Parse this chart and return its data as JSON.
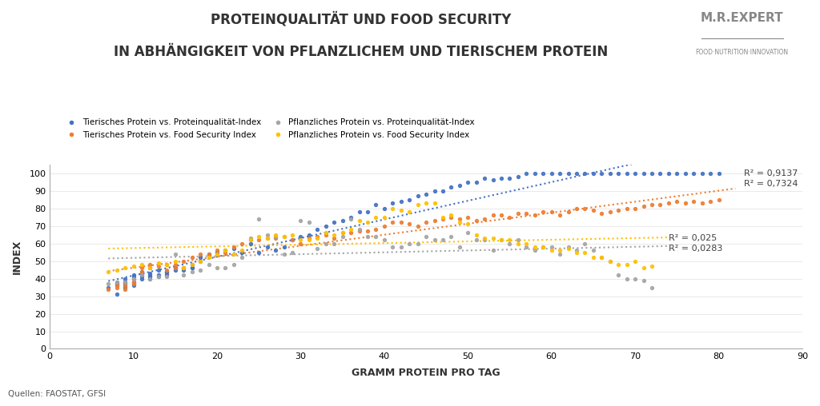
{
  "title_line1": "PROTEINQUALITÄT UND FOOD SECURITY",
  "title_line2": "IN ABHÄNGIGKEIT VON PFLANZLICHEM UND TIERISCHEM PROTEIN",
  "xlabel": "GRAMM PROTEIN PRO TAG",
  "ylabel": "INDEX",
  "source": "Quellen: FAOSTAT, GFSI",
  "xlim": [
    0,
    90
  ],
  "ylim": [
    0,
    105
  ],
  "xticks": [
    0,
    10,
    20,
    30,
    40,
    50,
    60,
    70,
    80,
    90
  ],
  "yticks": [
    0,
    10,
    20,
    30,
    40,
    50,
    60,
    70,
    80,
    90,
    100
  ],
  "color_tier_prot": "#4472C4",
  "color_tier_food": "#ED7D31",
  "color_pflanz_prot": "#A5A5A5",
  "color_pflanz_food": "#FFC000",
  "r2_tier_prot": "R² = 0,9137",
  "r2_tier_food": "R² = 0,7324",
  "r2_pflanz_prot": "R² = 0,025",
  "r2_pflanz_food": "R² = 0,0283",
  "legend_labels": [
    "Tierisches Protein vs. Proteinqualität-Index",
    "Tierisches Protein vs. Food Security Index",
    "Pflanzliches Protein vs. Proteinqualität-Index",
    "Pflanzliches Protein vs. Food Security Index"
  ],
  "tier_prot_x": [
    7,
    8,
    8,
    8,
    8,
    9,
    9,
    9,
    9,
    9,
    9,
    10,
    10,
    10,
    10,
    10,
    10,
    11,
    11,
    11,
    11,
    11,
    12,
    12,
    12,
    12,
    12,
    12,
    13,
    13,
    13,
    14,
    14,
    14,
    14,
    15,
    15,
    15,
    16,
    16,
    17,
    17,
    17,
    18,
    18,
    19,
    20,
    21,
    22,
    23,
    24,
    25,
    26,
    27,
    28,
    29,
    30,
    31,
    32,
    33,
    34,
    35,
    36,
    37,
    38,
    39,
    40,
    41,
    42,
    43,
    44,
    45,
    46,
    47,
    48,
    49,
    50,
    51,
    52,
    53,
    54,
    55,
    56,
    57,
    58,
    59,
    60,
    61,
    62,
    63,
    64,
    65,
    66,
    67,
    68,
    69,
    70,
    71,
    72,
    73,
    74,
    75,
    76,
    77,
    78,
    79,
    80
  ],
  "tier_prot_y": [
    35,
    36,
    37,
    38,
    31,
    35,
    38,
    40,
    38,
    37,
    36,
    36,
    40,
    42,
    38,
    41,
    37,
    44,
    43,
    41,
    42,
    40,
    41,
    46,
    43,
    42,
    41,
    40,
    45,
    42,
    41,
    44,
    43,
    44,
    42,
    46,
    45,
    46,
    46,
    45,
    46,
    48,
    46,
    50,
    52,
    54,
    55,
    56,
    57,
    55,
    60,
    55,
    58,
    56,
    58,
    62,
    64,
    65,
    68,
    70,
    72,
    73,
    75,
    78,
    78,
    82,
    80,
    83,
    84,
    85,
    87,
    88,
    90,
    90,
    92,
    93,
    95,
    95,
    97,
    96,
    97,
    97,
    98,
    100,
    100,
    100,
    100,
    100,
    100,
    100,
    100,
    100,
    100,
    100,
    100,
    100,
    100,
    100,
    100,
    100,
    100,
    100,
    100,
    100,
    100,
    100,
    100
  ],
  "tier_food_x": [
    7,
    8,
    8,
    9,
    9,
    10,
    10,
    10,
    11,
    11,
    12,
    12,
    13,
    14,
    14,
    15,
    15,
    16,
    16,
    17,
    18,
    19,
    20,
    21,
    22,
    23,
    24,
    25,
    26,
    27,
    28,
    29,
    30,
    31,
    32,
    33,
    34,
    35,
    36,
    37,
    38,
    39,
    40,
    41,
    42,
    43,
    44,
    45,
    46,
    47,
    48,
    49,
    50,
    51,
    52,
    53,
    54,
    55,
    56,
    57,
    58,
    59,
    60,
    61,
    62,
    63,
    64,
    65,
    66,
    67,
    68,
    69,
    70,
    71,
    72,
    73,
    74,
    75,
    76,
    77,
    78,
    79,
    80
  ],
  "tier_food_y": [
    34,
    35,
    36,
    34,
    36,
    37,
    38,
    40,
    44,
    46,
    48,
    46,
    47,
    45,
    48,
    48,
    46,
    46,
    50,
    52,
    54,
    54,
    56,
    55,
    58,
    60,
    62,
    62,
    63,
    63,
    64,
    62,
    60,
    63,
    64,
    65,
    63,
    66,
    66,
    67,
    67,
    68,
    70,
    72,
    72,
    71,
    70,
    72,
    73,
    74,
    75,
    74,
    75,
    73,
    74,
    76,
    76,
    75,
    77,
    77,
    76,
    78,
    78,
    76,
    78,
    80,
    80,
    79,
    77,
    78,
    79,
    80,
    80,
    81,
    82,
    82,
    83,
    84,
    83,
    84,
    83,
    84,
    85
  ],
  "pflanz_prot_x": [
    7,
    8,
    9,
    10,
    11,
    12,
    13,
    14,
    15,
    16,
    17,
    18,
    19,
    20,
    21,
    22,
    23,
    24,
    25,
    26,
    27,
    28,
    29,
    30,
    31,
    32,
    33,
    34,
    35,
    36,
    37,
    38,
    39,
    40,
    41,
    42,
    43,
    44,
    45,
    46,
    47,
    48,
    49,
    50,
    51,
    52,
    53,
    54,
    55,
    56,
    57,
    58,
    59,
    60,
    61,
    62,
    63,
    64,
    65,
    66,
    67,
    68,
    69,
    70,
    71,
    72
  ],
  "pflanz_prot_y": [
    37,
    38,
    38,
    40,
    42,
    40,
    41,
    41,
    54,
    42,
    44,
    45,
    48,
    46,
    46,
    48,
    52,
    63,
    74,
    65,
    64,
    54,
    55,
    73,
    72,
    57,
    60,
    60,
    64,
    74,
    68,
    64,
    64,
    62,
    58,
    58,
    60,
    60,
    64,
    62,
    62,
    64,
    58,
    66,
    62,
    62,
    56,
    62,
    60,
    62,
    58,
    56,
    58,
    58,
    54,
    58,
    56,
    60,
    56,
    52,
    50,
    42,
    40,
    40,
    39,
    35
  ],
  "pflanz_food_x": [
    7,
    8,
    9,
    10,
    11,
    12,
    13,
    14,
    15,
    16,
    17,
    18,
    19,
    20,
    21,
    22,
    23,
    24,
    25,
    26,
    27,
    28,
    29,
    30,
    31,
    32,
    33,
    34,
    35,
    36,
    37,
    38,
    39,
    40,
    41,
    42,
    43,
    44,
    45,
    46,
    47,
    48,
    49,
    50,
    51,
    52,
    53,
    54,
    55,
    56,
    57,
    58,
    59,
    60,
    61,
    62,
    63,
    64,
    65,
    66,
    67,
    68,
    69,
    70,
    71,
    72
  ],
  "pflanz_food_y": [
    44,
    45,
    46,
    47,
    48,
    46,
    49,
    48,
    50,
    46,
    48,
    50,
    52,
    54,
    56,
    54,
    56,
    62,
    64,
    63,
    65,
    64,
    65,
    62,
    62,
    63,
    66,
    65,
    66,
    68,
    73,
    72,
    75,
    75,
    80,
    79,
    78,
    82,
    83,
    83,
    75,
    76,
    72,
    71,
    65,
    63,
    63,
    62,
    62,
    60,
    60,
    58,
    58,
    56,
    56,
    57,
    55,
    55,
    52,
    52,
    50,
    48,
    48,
    50,
    46,
    47
  ]
}
